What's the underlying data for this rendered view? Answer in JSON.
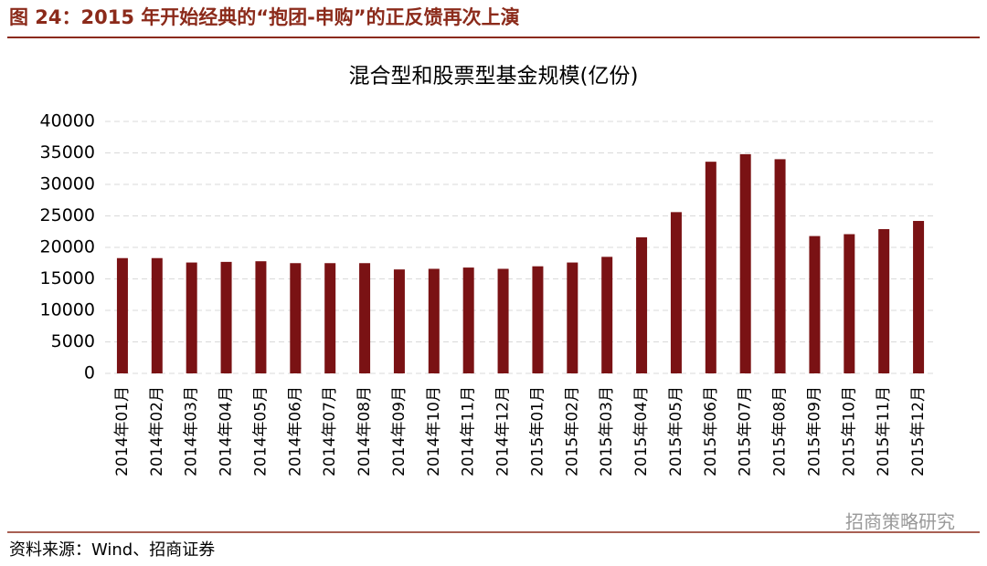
{
  "header": {
    "title": "图 24：2015 年开始经典的“抱团-申购”的正反馈再次上演"
  },
  "chart_data": {
    "type": "bar",
    "title": "混合型和股票型基金规模(亿份)",
    "categories": [
      "2014年01月",
      "2014年02月",
      "2014年03月",
      "2014年04月",
      "2014年05月",
      "2014年06月",
      "2014年07月",
      "2014年08月",
      "2014年09月",
      "2014年10月",
      "2014年11月",
      "2014年12月",
      "2015年01月",
      "2015年02月",
      "2015年03月",
      "2015年04月",
      "2015年05月",
      "2015年06月",
      "2015年07月",
      "2015年08月",
      "2015年09月",
      "2015年10月",
      "2015年11月",
      "2015年12月"
    ],
    "values": [
      18300,
      18300,
      17600,
      17700,
      17800,
      17500,
      17500,
      17500,
      16500,
      16600,
      16800,
      16600,
      17000,
      17600,
      18500,
      21600,
      25600,
      33600,
      34800,
      34000,
      21800,
      22100,
      22900,
      24200
    ],
    "color": "#7a1214",
    "ylim": [
      0,
      40000
    ],
    "yticks": [
      0,
      5000,
      10000,
      15000,
      20000,
      25000,
      30000,
      35000,
      40000
    ],
    "grid": true
  },
  "footer": {
    "source": "资料来源：Wind、招商证券"
  },
  "watermark": "招商策略研究"
}
